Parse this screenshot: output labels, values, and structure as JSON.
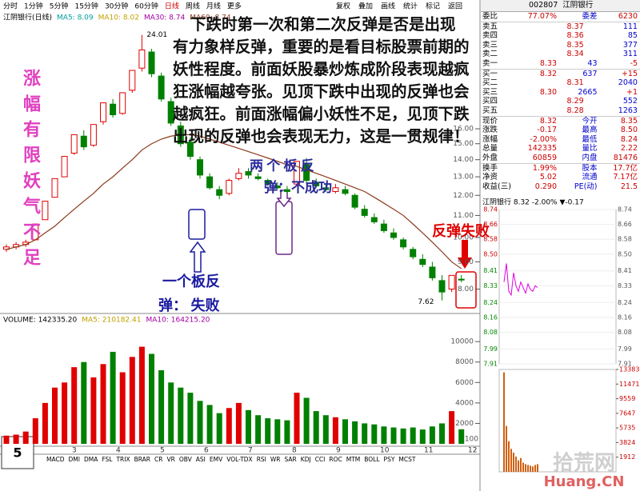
{
  "chart_data": [
    {
      "type": "candlestick",
      "toolbar": [
        "分时",
        "1分钟",
        "5分钟",
        "15分钟",
        "30分钟",
        "60分钟",
        "日线",
        "周线",
        "月线",
        "更多"
      ],
      "toolbar_right": [
        "复权",
        "叠加",
        "画线",
        "统计",
        "标记",
        "返回"
      ],
      "legend": [
        "江阴银行(日线)",
        "MA5: 8.09",
        "MA10: 8.02",
        "MA30: 8.74",
        "MA60: 8.74"
      ],
      "up_color": "#e00000",
      "down_color": "#008000",
      "open": [
        9.5,
        9.6,
        9.7,
        9.9,
        10.8,
        11.9,
        13.0,
        14.4,
        15.5,
        14.9,
        16.5,
        17.8,
        17.1,
        18.9,
        20.8,
        22.3,
        20.1,
        18.0,
        16.2,
        15.1,
        14.0,
        13.0,
        12.3,
        12.1,
        12.9,
        13.3,
        13.0,
        12.8,
        12.5,
        12.3,
        12.6,
        13.7,
        12.7,
        12.4,
        12.2,
        12.3,
        12.0,
        11.3,
        10.9,
        10.6,
        10.2,
        9.9,
        9.5,
        9.1,
        8.8,
        8.3,
        8.0,
        8.35
      ],
      "high": [
        9.7,
        9.8,
        9.9,
        10.6,
        11.7,
        12.9,
        14.2,
        15.6,
        15.9,
        16.3,
        17.9,
        18.2,
        18.7,
        20.6,
        24.01,
        22.6,
        20.4,
        18.3,
        16.5,
        15.4,
        14.2,
        13.2,
        12.5,
        12.9,
        13.5,
        13.5,
        13.2,
        12.9,
        12.7,
        12.5,
        13.9,
        14.1,
        12.9,
        12.6,
        12.6,
        12.5,
        12.1,
        11.5,
        11.1,
        10.8,
        10.4,
        10.0,
        9.6,
        9.3,
        9.0,
        8.5,
        8.5,
        8.5
      ],
      "low": [
        9.4,
        9.5,
        9.6,
        9.9,
        10.8,
        11.9,
        13.0,
        14.3,
        14.6,
        14.8,
        16.3,
        16.8,
        17.0,
        18.7,
        20.5,
        20.0,
        18.0,
        16.2,
        14.8,
        14.0,
        12.9,
        12.3,
        11.8,
        12.0,
        12.8,
        12.9,
        12.8,
        12.5,
        12.3,
        12.1,
        12.5,
        12.6,
        12.4,
        12.2,
        12.1,
        12.0,
        11.3,
        10.9,
        10.6,
        10.2,
        9.9,
        9.5,
        9.1,
        8.8,
        8.3,
        7.62,
        7.9,
        8.24
      ],
      "close": [
        9.6,
        9.7,
        9.8,
        10.6,
        11.7,
        12.9,
        14.2,
        15.6,
        14.8,
        16.3,
        17.9,
        17.0,
        18.7,
        20.6,
        22.5,
        20.3,
        18.2,
        16.4,
        15.0,
        14.2,
        13.1,
        12.4,
        12.0,
        12.8,
        13.2,
        13.1,
        12.9,
        12.6,
        12.4,
        12.2,
        13.9,
        12.8,
        12.5,
        12.3,
        12.4,
        12.1,
        11.4,
        11.0,
        10.7,
        10.3,
        10.0,
        9.6,
        9.2,
        8.9,
        8.4,
        7.9,
        8.49,
        8.32
      ],
      "series": [
        {
          "name": "MA60",
          "color": "#8b3a1a",
          "values": [
            9.5,
            9.6,
            9.7,
            9.9,
            10.2,
            10.5,
            10.9,
            11.3,
            11.7,
            12.1,
            12.6,
            13.0,
            13.5,
            14.0,
            14.6,
            15.0,
            15.3,
            15.5,
            15.6,
            15.6,
            15.5,
            15.3,
            15.1,
            14.9,
            14.7,
            14.5,
            14.3,
            14.1,
            13.9,
            13.7,
            13.6,
            13.4,
            13.2,
            13.0,
            12.8,
            12.6,
            12.4,
            12.2,
            11.9,
            11.6,
            11.3,
            11.0,
            10.6,
            10.2,
            9.8,
            9.4,
            9.0,
            8.74
          ]
        }
      ],
      "log_scale": true,
      "ylim": [
        7.3,
        25
      ],
      "yticks": [
        {
          "value": 8,
          "label": "8.00"
        },
        {
          "value": 9,
          "label": "9.00"
        },
        {
          "value": 10,
          "label": "10.00"
        },
        {
          "value": 11,
          "label": "11.00"
        },
        {
          "value": 12,
          "label": "12.00"
        },
        {
          "value": 13,
          "label": "13.00"
        },
        {
          "value": 14,
          "label": "14.00"
        },
        {
          "value": 15,
          "label": "15.00"
        },
        {
          "value": 16,
          "label": "16.00"
        }
      ],
      "max_label": "24.01",
      "min_label": "7.62",
      "volume_legend": [
        "VOLUME: 142335.20",
        "MA5: 210182.41",
        "MA10: 164215.20"
      ],
      "volume": [
        800,
        900,
        1200,
        2500,
        4000,
        5500,
        6000,
        7500,
        8000,
        6500,
        7800,
        9000,
        7000,
        8500,
        9500,
        8800,
        7200,
        6000,
        5500,
        5000,
        4200,
        3800,
        3000,
        3500,
        4000,
        3300,
        2800,
        2500,
        2400,
        2300,
        5000,
        4500,
        3200,
        2800,
        2600,
        2400,
        2200,
        2000,
        1900,
        1700,
        1600,
        1500,
        1600,
        1400,
        1700,
        2000,
        3200,
        1423.35
      ],
      "vol_ylim": [
        0,
        11500
      ],
      "vol_yticks": [
        2000,
        4000,
        6000,
        8000,
        10000
      ],
      "vol_unit": "X100",
      "x_labels": [
        "3",
        "4",
        "5",
        "6",
        "7",
        "8",
        "9",
        "10",
        "11",
        "12"
      ],
      "indicators": [
        "MACD",
        "DMI",
        "DMA",
        "FSL",
        "TRIX",
        "BRAR",
        "CR",
        "VR",
        "OBV",
        "ASI",
        "EMV",
        "VOL-TDX",
        "RSI",
        "WR",
        "SAR",
        "KDJ",
        "CCI",
        "ROC",
        "MTM",
        "BOLL",
        "PSY",
        "MCST"
      ]
    },
    {
      "type": "line",
      "title": "江阴银行 8.32 -2.00% ▼-0.17",
      "color": "#e000e0",
      "values": [
        8.35,
        8.45,
        8.3,
        8.28,
        8.4,
        8.33,
        8.3,
        8.35,
        8.32,
        8.29,
        8.34,
        8.31,
        8.3,
        8.33,
        8.32
      ],
      "ylim": [
        7.91,
        8.74
      ],
      "yticks": [
        {
          "value": 8.74,
          "label": "8.74"
        },
        {
          "value": 8.66,
          "label": "8.66"
        },
        {
          "value": 8.58,
          "label": "8.58"
        },
        {
          "value": 8.5,
          "label": "8.50"
        },
        {
          "value": 8.41,
          "label": "8.41"
        },
        {
          "value": 8.33,
          "label": "8.33"
        },
        {
          "value": 8.24,
          "label": "8.24"
        },
        {
          "value": 8.16,
          "label": "8.16"
        },
        {
          "value": 8.08,
          "label": "8.08"
        },
        {
          "value": 7.99,
          "label": "7.99"
        },
        {
          "value": 7.91,
          "label": "7.91"
        }
      ],
      "volume": [
        13000,
        6000,
        4000,
        3000,
        2500,
        2000,
        1500,
        1800,
        1200,
        1000,
        900,
        800,
        700,
        900,
        1000
      ],
      "vol_ylim": [
        0,
        13383
      ],
      "vol_yticks": [
        1912,
        3824,
        5735,
        7647,
        9559,
        11471,
        13383
      ]
    }
  ],
  "quote": {
    "header": [
      "002807",
      "江阴银行"
    ],
    "rows": [
      [
        "委比",
        "77.07%",
        "委差",
        "6230"
      ],
      [
        "卖五",
        "8.37",
        "111"
      ],
      [
        "卖四",
        "8.36",
        "85"
      ],
      [
        "卖三",
        "8.35",
        "377"
      ],
      [
        "卖二",
        "8.34",
        "311"
      ],
      [
        "卖一",
        "8.33",
        "43",
        "-5"
      ],
      [
        "买一",
        "8.32",
        "637",
        "+15"
      ],
      [
        "买二",
        "8.31",
        "2040"
      ],
      [
        "买三",
        "8.30",
        "2665",
        "+1"
      ],
      [
        "买四",
        "8.29",
        "552"
      ],
      [
        "买五",
        "8.28",
        "1263"
      ],
      [
        "现价",
        "8.32",
        "今开",
        "8.35"
      ],
      [
        "涨跌",
        "-0.17",
        "最高",
        "8.50"
      ],
      [
        "涨幅",
        "-2.00%",
        "最低",
        "8.24"
      ],
      [
        "总量",
        "142335",
        "量比",
        "2.22"
      ],
      [
        "外盘",
        "60859",
        "内盘",
        "81476"
      ],
      [
        "换手",
        "1.99%",
        "股本",
        "17.7亿"
      ],
      [
        "净资",
        "5.02",
        "流通",
        "7.17亿"
      ],
      [
        "收益(三)",
        "0.290",
        "PE(动)",
        "21.5"
      ]
    ]
  },
  "annotations": {
    "main": [
      "下跌时第一次和第二次反弹是否是出现",
      "有力象样反弹，重要的是看目标股票前期的",
      "妖性程度。前面妖股暴炒炼成阶段表现越疯",
      "狂涨幅越夸张。见顶下跌中出现的反弹也会",
      "越疯狂。前面涨幅偏小妖性不足，见顶下跌",
      "出现的反弹也会表现无力，这是一贯规律！"
    ],
    "side": "涨幅有限妖气不足",
    "two_board": [
      "两 个 板 反",
      "弹：不成功"
    ],
    "one_board": [
      "一个板反",
      "弹：  失败"
    ],
    "failed": "反弹失败",
    "page_number": "5"
  },
  "watermark": [
    "拾荒网",
    "Huang.CN"
  ]
}
